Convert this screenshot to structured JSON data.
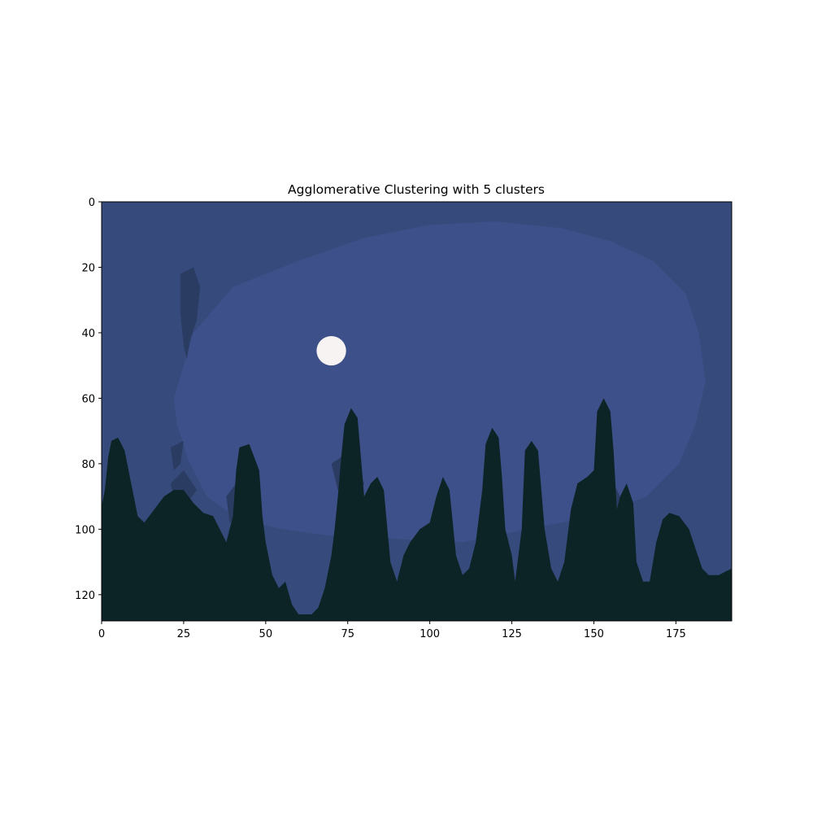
{
  "chart_data": {
    "type": "heatmap",
    "title": "Agglomerative Clustering with 5 clusters",
    "xlabel": "",
    "ylabel": "",
    "xlim": [
      0,
      192
    ],
    "ylim": [
      128,
      0
    ],
    "x_ticks": [
      0,
      25,
      50,
      75,
      100,
      125,
      150,
      175
    ],
    "y_ticks": [
      0,
      20,
      40,
      60,
      80,
      100,
      120
    ],
    "grid": false,
    "legend": "none",
    "clusters": [
      {
        "name": "sky-outer",
        "color": "#364a7c"
      },
      {
        "name": "sky-inner",
        "color": "#3e5089"
      },
      {
        "name": "sky-dark",
        "color": "#2b3c63"
      },
      {
        "name": "trees",
        "color": "#0c2426"
      },
      {
        "name": "moon",
        "color": "#f7f3f2"
      }
    ],
    "regions": {
      "inner_glow": [
        [
          22,
          60
        ],
        [
          28,
          40
        ],
        [
          40,
          26
        ],
        [
          60,
          18
        ],
        [
          80,
          11
        ],
        [
          100,
          7
        ],
        [
          120,
          6
        ],
        [
          140,
          8
        ],
        [
          155,
          12
        ],
        [
          168,
          18
        ],
        [
          178,
          28
        ],
        [
          182,
          40
        ],
        [
          184,
          55
        ],
        [
          181,
          68
        ],
        [
          176,
          80
        ],
        [
          166,
          90
        ],
        [
          150,
          96
        ],
        [
          130,
          100
        ],
        [
          110,
          104
        ],
        [
          90,
          103
        ],
        [
          70,
          102
        ],
        [
          55,
          100
        ],
        [
          42,
          97
        ],
        [
          32,
          90
        ],
        [
          26,
          78
        ],
        [
          23,
          68
        ]
      ],
      "dark_patches": [
        [
          [
            24,
            22
          ],
          [
            28,
            20
          ],
          [
            30,
            26
          ],
          [
            29,
            36
          ],
          [
            27,
            42
          ],
          [
            26,
            48
          ],
          [
            25,
            44
          ],
          [
            24,
            34
          ]
        ],
        [
          [
            21,
            75
          ],
          [
            25,
            73
          ],
          [
            24,
            80
          ],
          [
            22,
            82
          ]
        ],
        [
          [
            21,
            86
          ],
          [
            25,
            82
          ],
          [
            29,
            88
          ],
          [
            26,
            92
          ],
          [
            22,
            90
          ]
        ],
        [
          [
            38,
            90
          ],
          [
            41,
            86
          ],
          [
            42,
            96
          ],
          [
            39,
            98
          ]
        ],
        [
          [
            70,
            80
          ],
          [
            76,
            76
          ],
          [
            80,
            86
          ],
          [
            78,
            92
          ],
          [
            72,
            88
          ]
        ],
        [
          [
            146,
            90
          ],
          [
            156,
            86
          ],
          [
            160,
            94
          ],
          [
            156,
            100
          ],
          [
            148,
            98
          ]
        ]
      ],
      "trees": [
        [
          0,
          128
        ],
        [
          0,
          93
        ],
        [
          1,
          88
        ],
        [
          2,
          78
        ],
        [
          3,
          73
        ],
        [
          5,
          72
        ],
        [
          7,
          76
        ],
        [
          9,
          86
        ],
        [
          11,
          96
        ],
        [
          13,
          98
        ],
        [
          16,
          94
        ],
        [
          19,
          90
        ],
        [
          22,
          88
        ],
        [
          25,
          88
        ],
        [
          28,
          92
        ],
        [
          31,
          95
        ],
        [
          34,
          96
        ],
        [
          36,
          100
        ],
        [
          38,
          104
        ],
        [
          40,
          96
        ],
        [
          41,
          82
        ],
        [
          42,
          75
        ],
        [
          45,
          74
        ],
        [
          48,
          82
        ],
        [
          49,
          96
        ],
        [
          50,
          104
        ],
        [
          52,
          114
        ],
        [
          54,
          118
        ],
        [
          56,
          116
        ],
        [
          58,
          123
        ],
        [
          60,
          126
        ],
        [
          64,
          126
        ],
        [
          66,
          124
        ],
        [
          68,
          118
        ],
        [
          70,
          108
        ],
        [
          71,
          100
        ],
        [
          72,
          90
        ],
        [
          73,
          78
        ],
        [
          74,
          68
        ],
        [
          76,
          63
        ],
        [
          78,
          66
        ],
        [
          79,
          78
        ],
        [
          80,
          90
        ],
        [
          82,
          86
        ],
        [
          84,
          84
        ],
        [
          86,
          88
        ],
        [
          88,
          110
        ],
        [
          90,
          116
        ],
        [
          92,
          108
        ],
        [
          94,
          104
        ],
        [
          97,
          100
        ],
        [
          100,
          98
        ],
        [
          102,
          90
        ],
        [
          104,
          84
        ],
        [
          106,
          88
        ],
        [
          108,
          108
        ],
        [
          110,
          114
        ],
        [
          112,
          112
        ],
        [
          114,
          104
        ],
        [
          116,
          88
        ],
        [
          117,
          74
        ],
        [
          119,
          69
        ],
        [
          121,
          72
        ],
        [
          122,
          84
        ],
        [
          123,
          100
        ],
        [
          125,
          108
        ],
        [
          126,
          116
        ],
        [
          128,
          100
        ],
        [
          129,
          76
        ],
        [
          131,
          73
        ],
        [
          133,
          76
        ],
        [
          135,
          100
        ],
        [
          137,
          112
        ],
        [
          139,
          116
        ],
        [
          141,
          110
        ],
        [
          143,
          94
        ],
        [
          145,
          86
        ],
        [
          148,
          84
        ],
        [
          150,
          82
        ],
        [
          151,
          64
        ],
        [
          153,
          60
        ],
        [
          155,
          64
        ],
        [
          156,
          76
        ],
        [
          157,
          94
        ],
        [
          158,
          90
        ],
        [
          160,
          86
        ],
        [
          162,
          92
        ],
        [
          163,
          110
        ],
        [
          165,
          116
        ],
        [
          167,
          116
        ],
        [
          169,
          104
        ],
        [
          171,
          97
        ],
        [
          173,
          95
        ],
        [
          176,
          96
        ],
        [
          179,
          100
        ],
        [
          181,
          106
        ],
        [
          183,
          112
        ],
        [
          185,
          114
        ],
        [
          188,
          114
        ],
        [
          190,
          113
        ],
        [
          192,
          112
        ],
        [
          192,
          128
        ]
      ],
      "moon": {
        "cx": 70,
        "cy": 45.5,
        "r": 4.5
      }
    }
  }
}
